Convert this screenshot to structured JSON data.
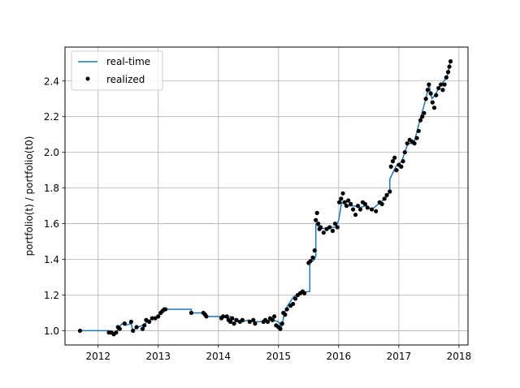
{
  "chart_data": {
    "type": "line",
    "xlabel": "",
    "ylabel": "portfolio(t) / portfolio(t0)",
    "xlim": [
      2011.45,
      2018.15
    ],
    "ylim": [
      0.92,
      2.59
    ],
    "x_ticks": [
      2012,
      2013,
      2014,
      2015,
      2016,
      2017,
      2018
    ],
    "x_tick_labels": [
      "2012",
      "2013",
      "2014",
      "2015",
      "2016",
      "2017",
      "2018"
    ],
    "y_ticks": [
      1.0,
      1.2,
      1.4,
      1.6,
      1.8,
      2.0,
      2.2,
      2.4
    ],
    "y_tick_labels": [
      "1.0",
      "1.2",
      "1.4",
      "1.6",
      "1.8",
      "2.0",
      "2.2",
      "2.4"
    ],
    "grid": true,
    "legend_position": "top-left",
    "colors": {
      "line": "#1f77b4",
      "markers": "#000000",
      "grid": "#b0b0b0"
    },
    "series": [
      {
        "name": "real-time",
        "kind": "line",
        "x": [
          2011.7,
          2012.18,
          2012.18,
          2012.3,
          2012.35,
          2012.4,
          2012.45,
          2012.55,
          2012.58,
          2012.65,
          2012.75,
          2012.85,
          2012.95,
          2013.05,
          2013.12,
          2013.55,
          2013.55,
          2013.75,
          2013.8,
          2013.85,
          2014.05,
          2014.15,
          2014.2,
          2014.3,
          2014.4,
          2014.5,
          2014.6,
          2014.75,
          2014.9,
          2015.0,
          2015.05,
          2015.1,
          2015.15,
          2015.25,
          2015.35,
          2015.5,
          2015.52,
          2015.52,
          2015.6,
          2015.62,
          2015.62,
          2015.7,
          2015.85,
          2015.95,
          2016.0,
          2016.05,
          2016.15,
          2016.25,
          2016.35,
          2016.45,
          2016.55,
          2016.7,
          2016.8,
          2016.85,
          2016.85,
          2016.95,
          2017.05,
          2017.15,
          2017.25,
          2017.35,
          2017.45,
          2017.5,
          2017.55,
          2017.6,
          2017.7,
          2017.8,
          2017.85
        ],
        "y": [
          1.0,
          1.0,
          0.99,
          0.99,
          1.02,
          1.04,
          1.03,
          1.04,
          1.0,
          1.02,
          1.03,
          1.06,
          1.07,
          1.1,
          1.12,
          1.12,
          1.1,
          1.1,
          1.08,
          1.08,
          1.08,
          1.07,
          1.08,
          1.05,
          1.05,
          1.06,
          1.05,
          1.05,
          1.06,
          1.05,
          1.02,
          1.1,
          1.14,
          1.19,
          1.21,
          1.22,
          1.22,
          1.38,
          1.4,
          1.42,
          1.6,
          1.57,
          1.58,
          1.58,
          1.62,
          1.72,
          1.7,
          1.7,
          1.69,
          1.7,
          1.68,
          1.72,
          1.75,
          1.78,
          1.85,
          1.92,
          1.95,
          2.05,
          2.05,
          2.18,
          2.3,
          2.38,
          2.3,
          2.32,
          2.38,
          2.42,
          2.5
        ]
      },
      {
        "name": "realized",
        "kind": "scatter",
        "x": [
          2011.7,
          2012.18,
          2012.22,
          2012.26,
          2012.3,
          2012.33,
          2012.36,
          2012.44,
          2012.55,
          2012.58,
          2012.64,
          2012.74,
          2012.77,
          2012.8,
          2012.85,
          2012.9,
          2012.95,
          2013.0,
          2013.04,
          2013.07,
          2013.1,
          2013.12,
          2013.55,
          2013.75,
          2013.78,
          2013.8,
          2014.05,
          2014.08,
          2014.14,
          2014.17,
          2014.2,
          2014.23,
          2014.26,
          2014.3,
          2014.36,
          2014.4,
          2014.52,
          2014.58,
          2014.61,
          2014.75,
          2014.78,
          2014.82,
          2014.86,
          2014.9,
          2014.93,
          2014.96,
          2015.0,
          2015.03,
          2015.06,
          2015.08,
          2015.11,
          2015.14,
          2015.2,
          2015.24,
          2015.28,
          2015.32,
          2015.36,
          2015.4,
          2015.43,
          2015.5,
          2015.53,
          2015.57,
          2015.6,
          2015.62,
          2015.64,
          2015.66,
          2015.68,
          2015.7,
          2015.75,
          2015.8,
          2015.85,
          2015.9,
          2015.94,
          2015.98,
          2016.01,
          2016.04,
          2016.07,
          2016.1,
          2016.13,
          2016.16,
          2016.2,
          2016.24,
          2016.28,
          2016.32,
          2016.36,
          2016.4,
          2016.44,
          2016.48,
          2016.55,
          2016.62,
          2016.68,
          2016.72,
          2016.76,
          2016.8,
          2016.85,
          2016.87,
          2016.9,
          2016.93,
          2016.96,
          2017.0,
          2017.04,
          2017.07,
          2017.1,
          2017.14,
          2017.18,
          2017.22,
          2017.26,
          2017.3,
          2017.33,
          2017.36,
          2017.39,
          2017.42,
          2017.45,
          2017.48,
          2017.5,
          2017.53,
          2017.56,
          2017.59,
          2017.62,
          2017.66,
          2017.7,
          2017.73,
          2017.76,
          2017.79,
          2017.82,
          2017.84,
          2017.86
        ],
        "y": [
          1.0,
          0.99,
          0.99,
          0.98,
          0.99,
          1.02,
          1.01,
          1.04,
          1.05,
          1.0,
          1.02,
          1.01,
          1.03,
          1.06,
          1.05,
          1.07,
          1.07,
          1.08,
          1.1,
          1.11,
          1.12,
          1.12,
          1.1,
          1.1,
          1.09,
          1.08,
          1.07,
          1.08,
          1.08,
          1.06,
          1.05,
          1.07,
          1.04,
          1.06,
          1.05,
          1.06,
          1.05,
          1.06,
          1.04,
          1.05,
          1.06,
          1.05,
          1.07,
          1.06,
          1.08,
          1.03,
          1.02,
          1.01,
          1.04,
          1.1,
          1.09,
          1.12,
          1.14,
          1.15,
          1.18,
          1.2,
          1.21,
          1.22,
          1.21,
          1.38,
          1.39,
          1.41,
          1.45,
          1.62,
          1.66,
          1.6,
          1.57,
          1.58,
          1.55,
          1.57,
          1.58,
          1.56,
          1.6,
          1.58,
          1.72,
          1.74,
          1.77,
          1.72,
          1.7,
          1.73,
          1.71,
          1.68,
          1.65,
          1.7,
          1.68,
          1.72,
          1.71,
          1.69,
          1.68,
          1.67,
          1.72,
          1.71,
          1.74,
          1.76,
          1.78,
          1.92,
          1.95,
          1.97,
          1.9,
          1.93,
          1.92,
          1.95,
          2.0,
          2.05,
          2.07,
          2.06,
          2.05,
          2.08,
          2.12,
          2.18,
          2.2,
          2.22,
          2.3,
          2.35,
          2.38,
          2.33,
          2.28,
          2.25,
          2.32,
          2.36,
          2.38,
          2.35,
          2.38,
          2.42,
          2.45,
          2.48,
          2.51
        ]
      }
    ]
  }
}
